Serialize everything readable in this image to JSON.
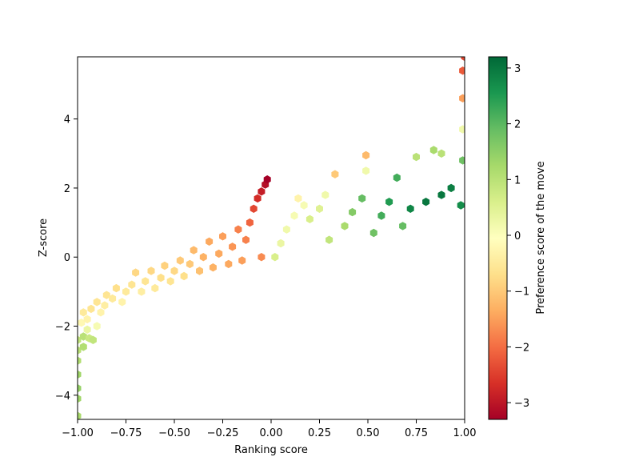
{
  "chart_data": {
    "type": "hexbin",
    "xlabel": "Ranking score",
    "ylabel": "Z-score",
    "xlim": [
      -1.0,
      1.0
    ],
    "ylim": [
      -4.7,
      5.8
    ],
    "x_ticks": [
      -1.0,
      -0.75,
      -0.5,
      -0.25,
      0.0,
      0.25,
      0.5,
      0.75,
      1.0
    ],
    "x_tick_labels": [
      "−1.00",
      "−0.75",
      "−0.50",
      "−0.25",
      "0.00",
      "0.25",
      "0.50",
      "0.75",
      "1.00"
    ],
    "y_ticks": [
      -4,
      -2,
      0,
      2,
      4
    ],
    "y_tick_labels": [
      "−4",
      "−2",
      "0",
      "2",
      "4"
    ],
    "colorbar": {
      "label": "Preference score of the move",
      "colormap": "RdYlGn",
      "range": [
        -3.3,
        3.2
      ],
      "ticks": [
        -3,
        -2,
        -1,
        0,
        1,
        2,
        3
      ],
      "tick_labels": [
        "−3",
        "−2",
        "−1",
        "0",
        "1",
        "2",
        "3"
      ]
    },
    "cells": [
      [
        -1.0,
        -4.6,
        1.2
      ],
      [
        -1.0,
        -4.1,
        1.3
      ],
      [
        -1.0,
        -3.8,
        1.4
      ],
      [
        -1.0,
        -3.4,
        1.3
      ],
      [
        -1.0,
        -3.0,
        1.1
      ],
      [
        -1.0,
        -2.7,
        1.0
      ],
      [
        -0.97,
        -2.6,
        1.1
      ],
      [
        -1.0,
        -2.4,
        0.9
      ],
      [
        -0.97,
        -2.3,
        1.0
      ],
      [
        -0.94,
        -2.35,
        0.8
      ],
      [
        -0.92,
        -2.4,
        0.9
      ],
      [
        -0.95,
        -2.1,
        0.3
      ],
      [
        -0.9,
        -2.0,
        0.1
      ],
      [
        -0.98,
        -1.9,
        -0.2
      ],
      [
        -0.95,
        -1.8,
        -0.3
      ],
      [
        -0.97,
        -1.6,
        -0.5
      ],
      [
        -0.93,
        -1.5,
        -0.6
      ],
      [
        -0.9,
        -1.3,
        -0.6
      ],
      [
        -0.88,
        -1.6,
        -0.3
      ],
      [
        -0.86,
        -1.4,
        -0.4
      ],
      [
        -0.85,
        -1.1,
        -0.6
      ],
      [
        -0.82,
        -1.2,
        -0.5
      ],
      [
        -0.8,
        -0.9,
        -0.7
      ],
      [
        -0.77,
        -1.3,
        -0.3
      ],
      [
        -0.75,
        -1.0,
        -0.5
      ],
      [
        -0.72,
        -0.8,
        -0.6
      ],
      [
        -0.7,
        -0.45,
        -0.8
      ],
      [
        -0.67,
        -1.0,
        -0.4
      ],
      [
        -0.65,
        -0.7,
        -0.6
      ],
      [
        -0.62,
        -0.4,
        -0.8
      ],
      [
        -0.6,
        -0.9,
        -0.5
      ],
      [
        -0.57,
        -0.6,
        -0.7
      ],
      [
        -0.55,
        -0.25,
        -0.9
      ],
      [
        -0.52,
        -0.7,
        -0.6
      ],
      [
        -0.5,
        -0.4,
        -0.8
      ],
      [
        -0.47,
        -0.1,
        -1.0
      ],
      [
        -0.45,
        -0.55,
        -0.7
      ],
      [
        -0.42,
        -0.2,
        -1.0
      ],
      [
        -0.4,
        0.2,
        -1.2
      ],
      [
        -0.37,
        -0.4,
        -1.1
      ],
      [
        -0.35,
        0.0,
        -1.3
      ],
      [
        -0.32,
        0.45,
        -1.4
      ],
      [
        -0.3,
        -0.3,
        -1.3
      ],
      [
        -0.27,
        0.1,
        -1.4
      ],
      [
        -0.25,
        0.6,
        -1.5
      ],
      [
        -0.22,
        -0.2,
        -1.4
      ],
      [
        -0.2,
        0.3,
        -1.6
      ],
      [
        -0.17,
        0.8,
        -1.8
      ],
      [
        -0.15,
        -0.1,
        -1.5
      ],
      [
        -0.13,
        0.5,
        -1.8
      ],
      [
        -0.11,
        1.0,
        -2.1
      ],
      [
        -0.09,
        1.4,
        -2.4
      ],
      [
        -0.07,
        1.7,
        -2.7
      ],
      [
        -0.05,
        0.0,
        -1.7
      ],
      [
        -0.05,
        1.9,
        -2.9
      ],
      [
        -0.03,
        2.1,
        -3.1
      ],
      [
        -0.02,
        2.25,
        -3.3
      ],
      [
        0.02,
        0.0,
        0.6
      ],
      [
        0.05,
        0.4,
        0.3
      ],
      [
        0.08,
        0.8,
        0.2
      ],
      [
        0.12,
        1.2,
        0.1
      ],
      [
        0.14,
        1.7,
        -0.3
      ],
      [
        0.17,
        1.5,
        0.1
      ],
      [
        0.2,
        1.1,
        0.6
      ],
      [
        0.25,
        1.4,
        0.5
      ],
      [
        0.28,
        1.8,
        0.2
      ],
      [
        0.33,
        2.4,
        -1.0
      ],
      [
        0.3,
        0.5,
        0.9
      ],
      [
        0.38,
        0.9,
        1.2
      ],
      [
        0.42,
        1.3,
        1.6
      ],
      [
        0.47,
        1.7,
        1.9
      ],
      [
        0.49,
        2.95,
        -1.2
      ],
      [
        0.49,
        2.5,
        0.2
      ],
      [
        0.53,
        0.7,
        1.8
      ],
      [
        0.57,
        1.2,
        2.2
      ],
      [
        0.61,
        1.6,
        2.5
      ],
      [
        0.65,
        2.3,
        2.2
      ],
      [
        0.68,
        0.9,
        1.9
      ],
      [
        0.72,
        1.4,
        2.8
      ],
      [
        0.75,
        2.9,
        1.0
      ],
      [
        0.8,
        1.6,
        3.0
      ],
      [
        0.84,
        3.1,
        1.2
      ],
      [
        0.88,
        1.8,
        3.0
      ],
      [
        0.88,
        3.0,
        1.0
      ],
      [
        0.93,
        2.0,
        2.9
      ],
      [
        0.98,
        1.5,
        2.7
      ],
      [
        0.99,
        2.8,
        1.8
      ],
      [
        0.99,
        3.7,
        0.2
      ],
      [
        0.99,
        4.6,
        -1.5
      ],
      [
        0.99,
        5.4,
        -2.2
      ],
      [
        1.0,
        5.8,
        -2.4
      ]
    ]
  }
}
